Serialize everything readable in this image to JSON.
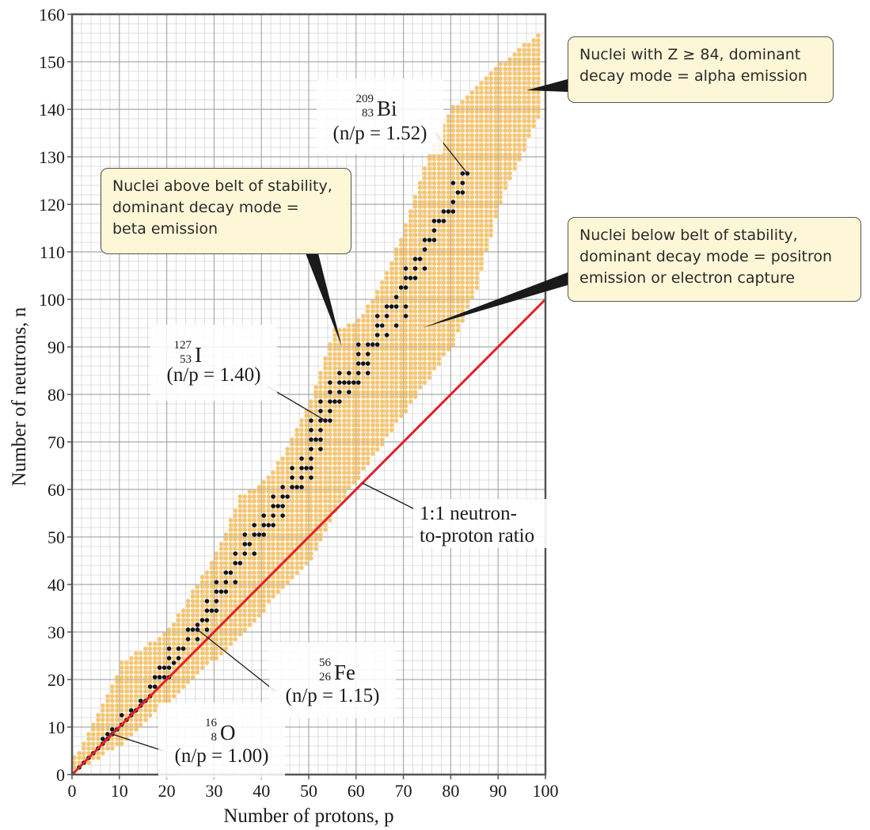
{
  "chart_data": {
    "type": "scatter",
    "xlabel": "Number of protons, p",
    "ylabel": "Number of neutrons, n",
    "xlim": [
      0,
      100
    ],
    "ylim": [
      0,
      160
    ],
    "x_ticks": [
      0,
      10,
      20,
      30,
      40,
      50,
      60,
      70,
      80,
      90,
      100
    ],
    "y_ticks": [
      0,
      10,
      20,
      30,
      40,
      50,
      60,
      70,
      80,
      90,
      100,
      110,
      120,
      130,
      140,
      150,
      160
    ],
    "grid": true,
    "colors": {
      "known_nuclei": "#f9c56a",
      "stable_nuclei": "#111111",
      "ratio_line": "#e0202a",
      "callout_fill": "#fdf7d7"
    },
    "series": [
      {
        "kind": "band",
        "lower": [
          [
            0,
            0
          ],
          [
            10,
            6
          ],
          [
            20,
            15
          ],
          [
            30,
            24
          ],
          [
            40,
            34
          ],
          [
            50,
            45
          ],
          [
            55,
            55
          ],
          [
            60,
            62
          ],
          [
            70,
            76
          ],
          [
            80,
            90
          ],
          [
            85,
            102
          ],
          [
            90,
            120
          ],
          [
            100,
            142
          ]
        ],
        "upper": [
          [
            0,
            3
          ],
          [
            5,
            12
          ],
          [
            10,
            23
          ],
          [
            20,
            30
          ],
          [
            30,
            46
          ],
          [
            35,
            58
          ],
          [
            40,
            61
          ],
          [
            45,
            68
          ],
          [
            50,
            78
          ],
          [
            55,
            93
          ],
          [
            60,
            95
          ],
          [
            65,
            103
          ],
          [
            70,
            115
          ],
          [
            75,
            130
          ],
          [
            80,
            140
          ],
          [
            90,
            149
          ],
          [
            100,
            157
          ]
        ]
      },
      {
        "kind": "stable",
        "points": [
          [
            1,
            1
          ],
          [
            2,
            2
          ],
          [
            3,
            3
          ],
          [
            4,
            4
          ],
          [
            5,
            5
          ],
          [
            6,
            6
          ],
          [
            7,
            7
          ],
          [
            8,
            8
          ],
          [
            9,
            9
          ],
          [
            10,
            10
          ],
          [
            11,
            11
          ],
          [
            12,
            12
          ],
          [
            13,
            13
          ],
          [
            14,
            14
          ],
          [
            15,
            15
          ],
          [
            16,
            16
          ],
          [
            17,
            18
          ],
          [
            18,
            20
          ],
          [
            19,
            20
          ],
          [
            20,
            20
          ],
          [
            21,
            23
          ],
          [
            22,
            24
          ],
          [
            23,
            26
          ],
          [
            24,
            28
          ],
          [
            25,
            30
          ],
          [
            26,
            30
          ],
          [
            27,
            32
          ],
          [
            28,
            30
          ],
          [
            29,
            34
          ],
          [
            30,
            36
          ],
          [
            31,
            38
          ],
          [
            32,
            40
          ],
          [
            33,
            42
          ],
          [
            34,
            44
          ],
          [
            35,
            44
          ],
          [
            36,
            48
          ],
          [
            37,
            48
          ],
          [
            38,
            50
          ],
          [
            39,
            50
          ],
          [
            40,
            52
          ],
          [
            41,
            52
          ],
          [
            42,
            54
          ],
          [
            43,
            56
          ],
          [
            44,
            56
          ],
          [
            45,
            58
          ],
          [
            46,
            60
          ],
          [
            47,
            60
          ],
          [
            48,
            62
          ],
          [
            49,
            64
          ],
          [
            50,
            66
          ],
          [
            51,
            70
          ],
          [
            52,
            72
          ],
          [
            53,
            74
          ],
          [
            54,
            76
          ],
          [
            55,
            78
          ],
          [
            56,
            82
          ],
          [
            57,
            82
          ],
          [
            58,
            82
          ],
          [
            59,
            82
          ],
          [
            60,
            84
          ],
          [
            61,
            86
          ],
          [
            62,
            88
          ],
          [
            63,
            90
          ],
          [
            64,
            92
          ],
          [
            65,
            94
          ],
          [
            66,
            96
          ],
          [
            67,
            98
          ],
          [
            68,
            100
          ],
          [
            69,
            102
          ],
          [
            70,
            104
          ],
          [
            71,
            104
          ],
          [
            72,
            106
          ],
          [
            73,
            108
          ],
          [
            74,
            110
          ],
          [
            75,
            112
          ],
          [
            76,
            114
          ],
          [
            77,
            116
          ],
          [
            78,
            118
          ],
          [
            79,
            118
          ],
          [
            80,
            120
          ],
          [
            81,
            122
          ],
          [
            82,
            124
          ],
          [
            83,
            126
          ]
        ],
        "extra_points": [
          [
            6,
            7
          ],
          [
            7,
            8
          ],
          [
            8,
            9
          ],
          [
            10,
            12
          ],
          [
            12,
            13
          ],
          [
            14,
            15
          ],
          [
            16,
            18
          ],
          [
            17,
            20
          ],
          [
            18,
            22
          ],
          [
            19,
            22
          ],
          [
            20,
            22
          ],
          [
            20,
            24
          ],
          [
            20,
            26
          ],
          [
            22,
            26
          ],
          [
            24,
            30
          ],
          [
            26,
            28
          ],
          [
            26,
            31
          ],
          [
            28,
            32
          ],
          [
            28,
            34
          ],
          [
            28,
            36
          ],
          [
            30,
            34
          ],
          [
            30,
            38
          ],
          [
            30,
            40
          ],
          [
            32,
            38
          ],
          [
            32,
            42
          ],
          [
            34,
            40
          ],
          [
            34,
            46
          ],
          [
            36,
            46
          ],
          [
            36,
            50
          ],
          [
            38,
            46
          ],
          [
            38,
            52
          ],
          [
            40,
            50
          ],
          [
            40,
            54
          ],
          [
            42,
            52
          ],
          [
            42,
            56
          ],
          [
            42,
            58
          ],
          [
            44,
            54
          ],
          [
            44,
            58
          ],
          [
            44,
            60
          ],
          [
            46,
            62
          ],
          [
            46,
            64
          ],
          [
            48,
            60
          ],
          [
            48,
            64
          ],
          [
            48,
            66
          ],
          [
            50,
            62
          ],
          [
            50,
            64
          ],
          [
            50,
            68
          ],
          [
            50,
            70
          ],
          [
            50,
            72
          ],
          [
            50,
            74
          ],
          [
            52,
            68
          ],
          [
            52,
            70
          ],
          [
            52,
            74
          ],
          [
            52,
            76
          ],
          [
            52,
            78
          ],
          [
            54,
            74
          ],
          [
            54,
            78
          ],
          [
            54,
            80
          ],
          [
            54,
            82
          ],
          [
            56,
            78
          ],
          [
            56,
            80
          ],
          [
            56,
            84
          ],
          [
            58,
            80
          ],
          [
            58,
            84
          ],
          [
            60,
            82
          ],
          [
            60,
            86
          ],
          [
            60,
            88
          ],
          [
            60,
            90
          ],
          [
            62,
            84
          ],
          [
            62,
            86
          ],
          [
            62,
            90
          ],
          [
            64,
            90
          ],
          [
            64,
            94
          ],
          [
            64,
            96
          ],
          [
            66,
            92
          ],
          [
            66,
            98
          ],
          [
            68,
            94
          ],
          [
            68,
            98
          ],
          [
            70,
            96
          ],
          [
            70,
            98
          ],
          [
            70,
            102
          ],
          [
            70,
            106
          ],
          [
            72,
            104
          ],
          [
            72,
            108
          ],
          [
            74,
            106
          ],
          [
            74,
            112
          ],
          [
            76,
            112
          ],
          [
            76,
            116
          ],
          [
            78,
            116
          ],
          [
            80,
            118
          ],
          [
            80,
            124
          ],
          [
            82,
            122
          ],
          [
            82,
            126
          ]
        ]
      },
      {
        "kind": "line",
        "name": "1:1 neutron-to-proton ratio",
        "points": [
          [
            0,
            0
          ],
          [
            100,
            100
          ]
        ]
      }
    ],
    "annotations": [
      {
        "symbol": "Bi",
        "mass": "209",
        "z": "83",
        "ratio": "(n/p = 1.52)",
        "anchor": [
          83,
          126
        ]
      },
      {
        "symbol": "I",
        "mass": "127",
        "z": "53",
        "ratio": "(n/p = 1.40)",
        "anchor": [
          53,
          74
        ]
      },
      {
        "symbol": "Fe",
        "mass": "56",
        "z": "26",
        "ratio": "(n/p = 1.15)",
        "anchor": [
          26,
          30
        ]
      },
      {
        "symbol": "O",
        "mass": "16",
        "z": "8",
        "ratio": "(n/p = 1.00)",
        "anchor": [
          8,
          8
        ]
      }
    ],
    "line_label": [
      "1:1 neutron-",
      "to-proton ratio"
    ],
    "callouts": [
      {
        "lines": [
          "Nuclei with Z ≥ 84, dominant",
          "decay mode = alpha emission"
        ],
        "pointer_to": [
          96,
          144
        ]
      },
      {
        "lines": [
          "Nuclei above belt of stability,",
          "dominant decay mode =",
          "beta emission"
        ],
        "pointer_to": [
          57,
          90
        ]
      },
      {
        "lines": [
          "Nuclei below belt of stability,",
          "dominant decay mode = positron",
          "emission or electron capture"
        ],
        "pointer_to": [
          74,
          94
        ]
      }
    ]
  }
}
